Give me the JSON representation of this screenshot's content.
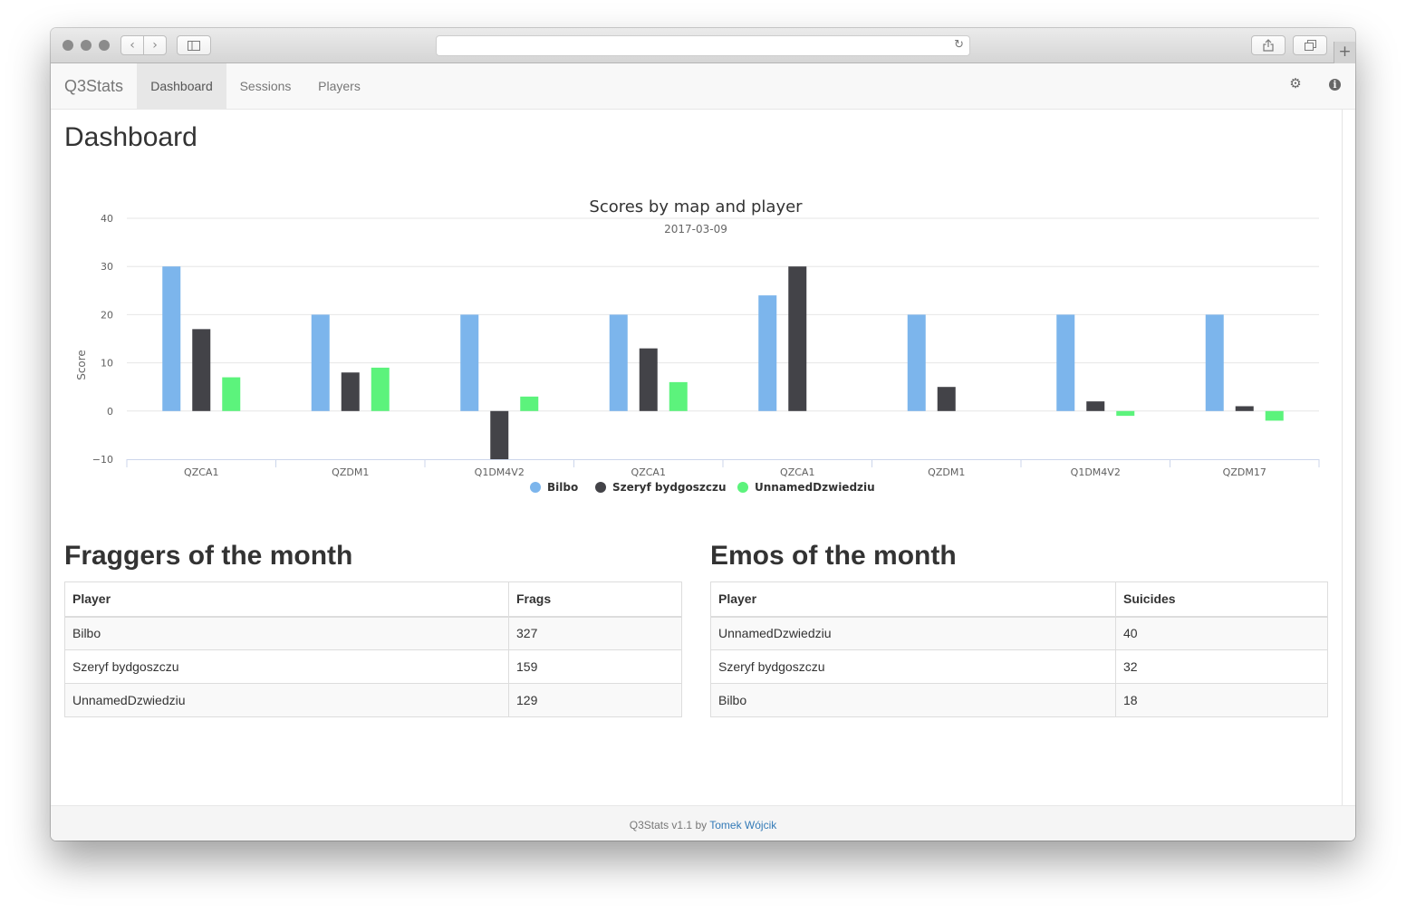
{
  "browser": {
    "url": "",
    "icons": {
      "back": "chevron-left-icon",
      "forward": "chevron-right-icon",
      "sidebar": "sidebar-icon",
      "reload": "reload-icon",
      "share": "share-icon",
      "tabs": "tabs-icon",
      "new_tab": "plus-icon"
    }
  },
  "navbar": {
    "brand": "Q3Stats",
    "items": [
      {
        "label": "Dashboard",
        "active": true
      },
      {
        "label": "Sessions",
        "active": false
      },
      {
        "label": "Players",
        "active": false
      }
    ],
    "icons": {
      "settings": "gear-icon",
      "info": "info-icon"
    }
  },
  "page": {
    "title": "Dashboard"
  },
  "chart_data": {
    "type": "bar",
    "title": "Scores by map and player",
    "subtitle": "2017-03-09",
    "ylabel": "Score",
    "xlabel": "",
    "ylim": [
      -10,
      40
    ],
    "yticks": [
      -10,
      0,
      10,
      20,
      30,
      40
    ],
    "grid": true,
    "legend_position": "bottom",
    "categories": [
      "QZCA1",
      "QZDM1",
      "Q1DM4V2",
      "QZCA1",
      "QZCA1",
      "QZDM1",
      "Q1DM4V2",
      "QZDM17"
    ],
    "series": [
      {
        "name": "Bilbo",
        "color": "#7cb5ec",
        "values": [
          30,
          20,
          20,
          20,
          24,
          20,
          20,
          20
        ]
      },
      {
        "name": "Szeryf bydgoszczu",
        "color": "#434348",
        "values": [
          17,
          8,
          -10,
          13,
          30,
          5,
          2,
          1
        ]
      },
      {
        "name": "UnnamedDzwiedziu",
        "color": "#5cf37c",
        "values": [
          7,
          9,
          3,
          6,
          null,
          null,
          -1,
          -2
        ]
      }
    ]
  },
  "fraggers": {
    "title": "Fraggers of the month",
    "headers": {
      "player": "Player",
      "value": "Frags"
    },
    "rows": [
      {
        "player": "Bilbo",
        "value": "327"
      },
      {
        "player": "Szeryf bydgoszczu",
        "value": "159"
      },
      {
        "player": "UnnamedDzwiedziu",
        "value": "129"
      }
    ]
  },
  "emos": {
    "title": "Emos of the month",
    "headers": {
      "player": "Player",
      "value": "Suicides"
    },
    "rows": [
      {
        "player": "UnnamedDzwiedziu",
        "value": "40"
      },
      {
        "player": "Szeryf bydgoszczu",
        "value": "32"
      },
      {
        "player": "Bilbo",
        "value": "18"
      }
    ]
  },
  "footer": {
    "text": "Q3Stats v1.1 by ",
    "author": "Tomek Wójcik"
  }
}
